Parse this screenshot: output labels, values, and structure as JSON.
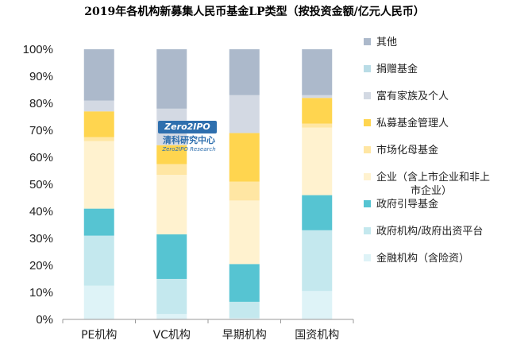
{
  "chart_data": {
    "type": "bar",
    "stacked": true,
    "title": "2019年各机构新募集人民币基金LP类型（按投资金额/亿元人民币）",
    "categories": [
      "PE机构",
      "VC机构",
      "早期机构",
      "国资机构"
    ],
    "ylim": [
      0,
      100
    ],
    "yticks": [
      0,
      10,
      20,
      30,
      40,
      50,
      60,
      70,
      80,
      90,
      100
    ],
    "ytick_suffix": "%",
    "legend_position": "right",
    "series": [
      {
        "name": "金融机构（含险资）",
        "color": "#def3f7",
        "values": [
          12.5,
          2.0,
          0.5,
          10.5
        ]
      },
      {
        "name": "政府机构/政府出资平台",
        "color": "#c4e8ee",
        "values": [
          18.5,
          13.0,
          6.0,
          22.5
        ]
      },
      {
        "name": "政府引导基金",
        "color": "#56c4d2",
        "values": [
          10.0,
          16.5,
          14.0,
          13.0
        ]
      },
      {
        "name": "企业（含上市企业和非上市企业）",
        "color": "#fff2cf",
        "values": [
          25.0,
          22.0,
          23.5,
          25.0
        ]
      },
      {
        "name": "市场化母基金",
        "color": "#ffe6a3",
        "values": [
          1.5,
          4.0,
          7.0,
          1.5
        ]
      },
      {
        "name": "私募基金管理人",
        "color": "#ffd54f",
        "values": [
          9.5,
          7.0,
          18.0,
          9.5
        ]
      },
      {
        "name": "富有家族及个人",
        "color": "#d3d9e3",
        "values": [
          4.0,
          13.5,
          14.0,
          1.0
        ]
      },
      {
        "name": "捐赠基金",
        "color": "#b9dce6",
        "values": [
          0.0,
          0.0,
          0.0,
          0.0
        ]
      },
      {
        "name": "其他",
        "color": "#acb9cb",
        "values": [
          19.0,
          22.0,
          17.0,
          17.0
        ]
      }
    ],
    "legend": [
      {
        "label": "其他",
        "color": "#acb9cb"
      },
      {
        "label": "捐赠基金",
        "color": "#b9dce6"
      },
      {
        "label": "富有家族及个人",
        "color": "#d3d9e3"
      },
      {
        "label": "私募基金管理人",
        "color": "#ffd54f"
      },
      {
        "label": "市场化母基金",
        "color": "#ffe6a3"
      },
      {
        "label": "企业（含上市企业和非上",
        "label2": "市企业）",
        "color": "#fff2cf"
      },
      {
        "label": "政府引导基金",
        "color": "#56c4d2"
      },
      {
        "label": "政府机构/政府出资平台",
        "color": "#c4e8ee"
      },
      {
        "label": "金融机构（含险资）",
        "color": "#def3f7"
      }
    ]
  },
  "watermark": {
    "badge": "Zero2IPO",
    "name_cn": "清科研究中心",
    "name_en": "Zero2IPO Research"
  }
}
